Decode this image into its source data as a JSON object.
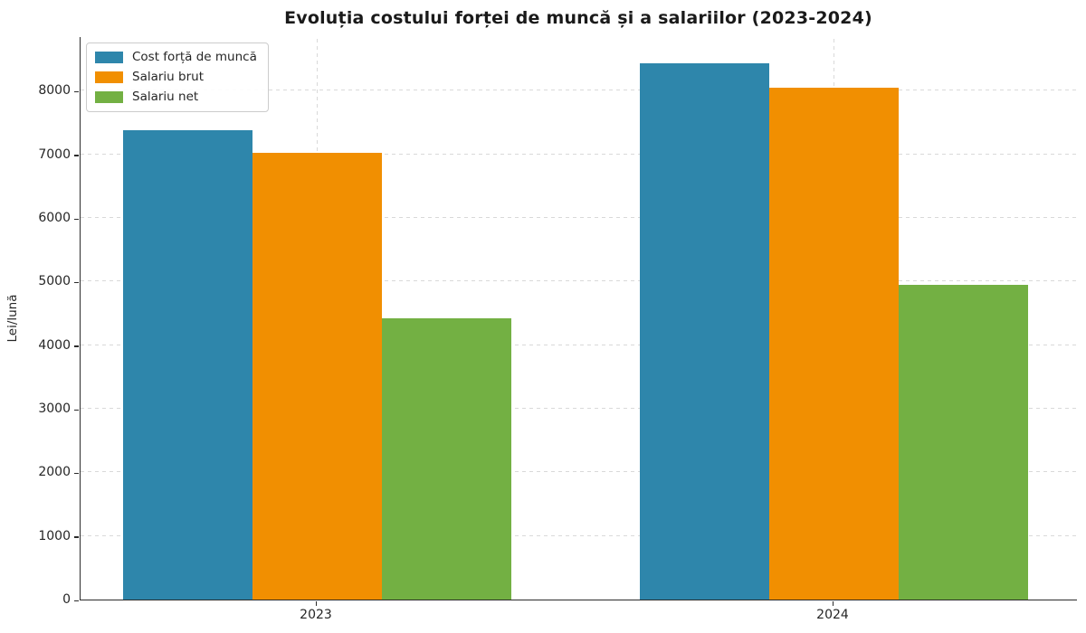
{
  "chart_data": {
    "type": "bar",
    "title": "Evoluția costului forței de muncă și a salariilor (2023-2024)",
    "xlabel": "",
    "ylabel": "Lei/lună",
    "categories": [
      "2023",
      "2024"
    ],
    "series": [
      {
        "name": "Cost forță de muncă",
        "color": "#2E86AB",
        "values": [
          7380,
          8430
        ]
      },
      {
        "name": "Salariu brut",
        "color": "#F18F01",
        "values": [
          7030,
          8050
        ]
      },
      {
        "name": "Salariu net",
        "color": "#73B043",
        "values": [
          4420,
          4950
        ]
      }
    ],
    "ylim": [
      0,
      8860
    ],
    "yticks": [
      0,
      1000,
      2000,
      3000,
      4000,
      5000,
      6000,
      7000,
      8000
    ],
    "grid": true,
    "grid_style": "dashed",
    "legend_position": "upper left",
    "background_color": "#ffffff",
    "grid_color": "#d9d9d9",
    "axis_color": "#2b2b2b",
    "text_color": "#262626"
  }
}
